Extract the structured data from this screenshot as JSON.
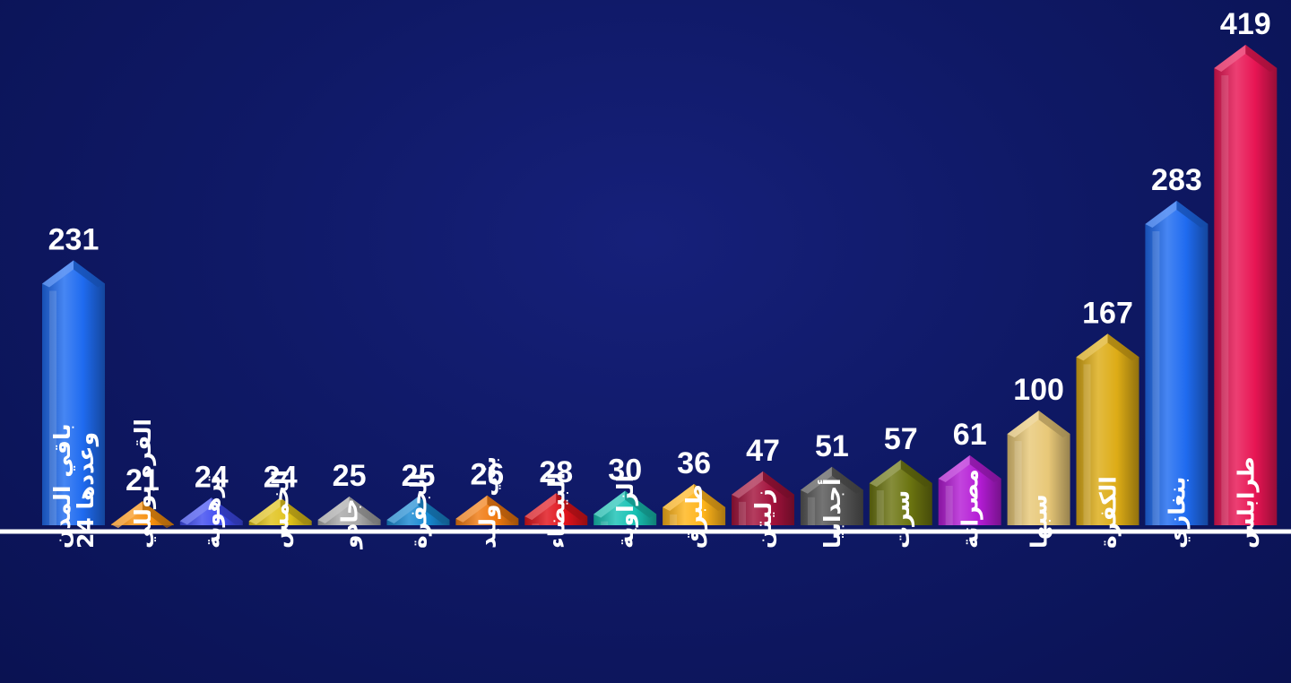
{
  "chart_data": {
    "type": "bar",
    "title": "",
    "xlabel": "",
    "ylabel": "",
    "ylim": [
      0,
      419
    ],
    "grid": false,
    "legend": "none",
    "categories": [
      [
        "باقي المدن",
        "وعددها 24"
      ],
      [
        "القره بوللي"
      ],
      [
        "ترهونة"
      ],
      [
        "الخمس"
      ],
      [
        "جادو"
      ],
      [
        "الجفرة"
      ],
      [
        "بني وليد"
      ],
      [
        "البيضاء"
      ],
      [
        "الزاوية"
      ],
      [
        "طبرق"
      ],
      [
        "زليتن"
      ],
      [
        "أجدابيا"
      ],
      [
        "سرت"
      ],
      [
        "مصراتة"
      ],
      [
        "سبها"
      ],
      [
        "الكفرة"
      ],
      [
        "بنغازي"
      ],
      [
        "طرابلس"
      ]
    ],
    "values": [
      231,
      21,
      24,
      24,
      25,
      25,
      26,
      28,
      30,
      36,
      47,
      51,
      57,
      61,
      100,
      167,
      283,
      419
    ],
    "colors": [
      "#1f6bf0",
      "#f7900f",
      "#3f4cf0",
      "#e0c21a",
      "#a9a9a9",
      "#1889d2",
      "#f07a10",
      "#e0141c",
      "#18c2b4",
      "#ffb41a",
      "#a3123c",
      "#565656",
      "#6b7410",
      "#b51cd6",
      "#e8c878",
      "#ddac16",
      "#1f6bf0",
      "#e81554"
    ],
    "value_label_color": "#ffffff",
    "baseline_color": "#ffffff"
  }
}
